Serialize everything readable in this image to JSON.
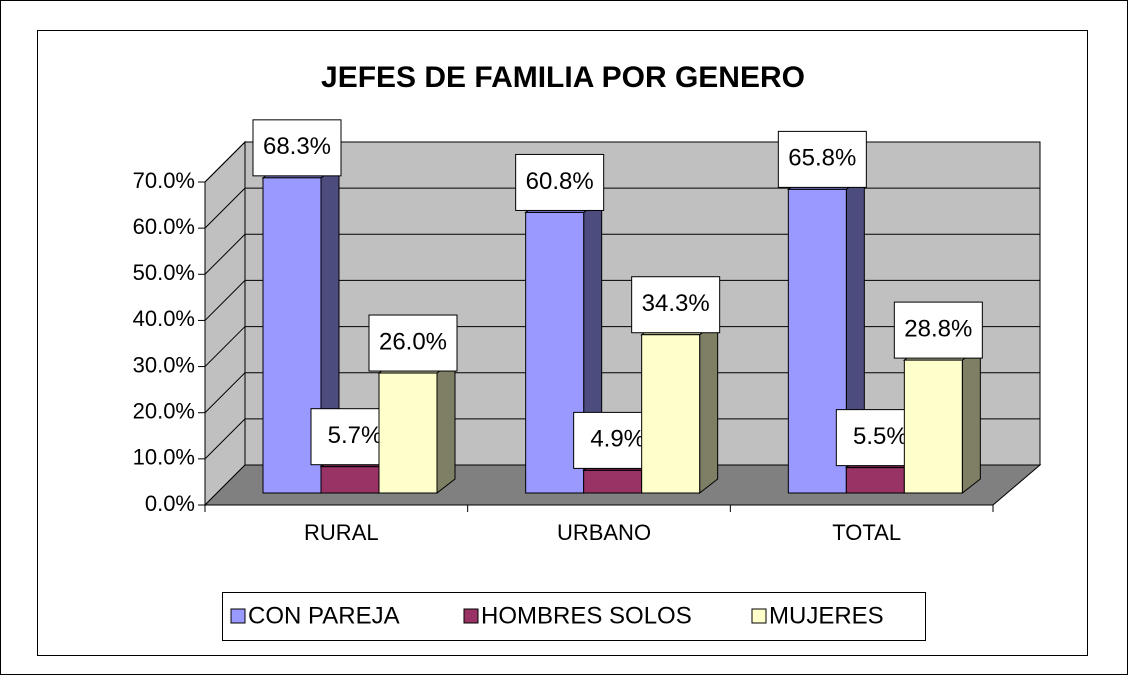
{
  "chart_data": {
    "type": "bar3d",
    "title": "JEFES DE FAMILIA POR GENERO",
    "categories": [
      "RURAL",
      "URBANO",
      "TOTAL"
    ],
    "series": [
      {
        "name": "CON PAREJA",
        "color": "#9999ff",
        "values": [
          68.3,
          60.8,
          65.8
        ],
        "value_labels": [
          "68.3%",
          "60.8%",
          "65.8%"
        ]
      },
      {
        "name": "HOMBRES SOLOS",
        "color": "#993366",
        "values": [
          5.7,
          4.9,
          5.5
        ],
        "value_labels": [
          "5.7%",
          "4.9%",
          "5.5%"
        ]
      },
      {
        "name": "MUJERES",
        "color": "#ffffcc",
        "values": [
          26.0,
          34.3,
          28.8
        ],
        "value_labels": [
          "26.0%",
          "34.3%",
          "28.8%"
        ]
      }
    ],
    "ylim": [
      0,
      70
    ],
    "yticks": [
      {
        "value": 0,
        "label": "0.0%"
      },
      {
        "value": 10,
        "label": "10.0%"
      },
      {
        "value": 20,
        "label": "20.0%"
      },
      {
        "value": 30,
        "label": "30.0%"
      },
      {
        "value": 40,
        "label": "40.0%"
      },
      {
        "value": 50,
        "label": "50.0%"
      },
      {
        "value": 60,
        "label": "60.0%"
      },
      {
        "value": 70,
        "label": "70.0%"
      }
    ],
    "grid": true,
    "legend": "bottom"
  }
}
